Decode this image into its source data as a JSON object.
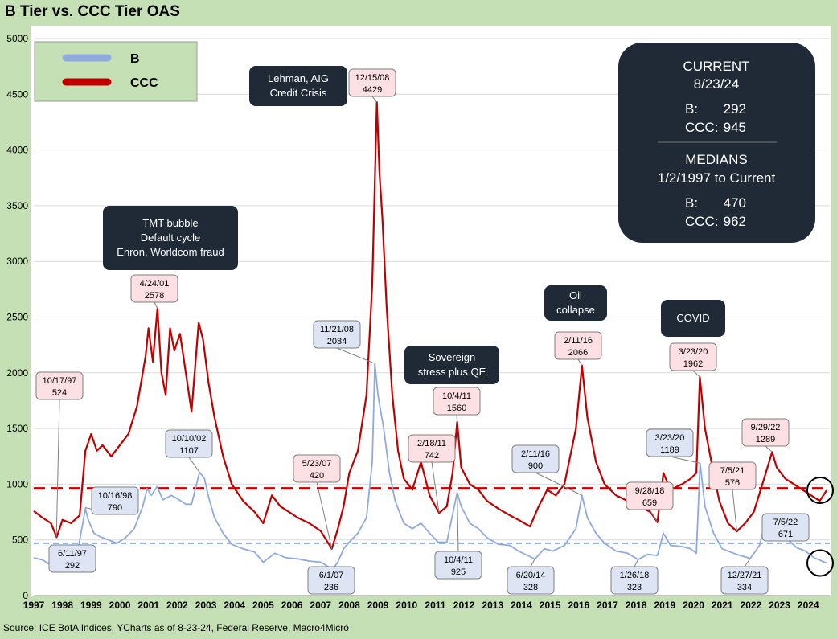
{
  "title": "B Tier vs. CCC Tier OAS",
  "source": "Source: ICE BofA Indices, YCharts as of 8-23-24, Federal Reserve, Macro4Micro",
  "chart_data": {
    "type": "line",
    "title": "B Tier vs. CCC Tier OAS",
    "xlabel": "",
    "ylabel": "",
    "xlim": [
      1997.0,
      2024.75
    ],
    "ylim": [
      0,
      5000
    ],
    "x_ticks": [
      "1997",
      "1998",
      "1999",
      "2000",
      "2001",
      "2002",
      "2003",
      "2004",
      "2005",
      "2006",
      "2007",
      "2008",
      "2009",
      "2010",
      "2011",
      "2012",
      "2013",
      "2014",
      "2015",
      "2016",
      "2017",
      "2018",
      "2019",
      "2020",
      "2021",
      "2022",
      "2023",
      "2024"
    ],
    "y_ticks": [
      0,
      500,
      1000,
      1500,
      2000,
      2500,
      3000,
      3500,
      4000,
      4500,
      5000
    ],
    "grid": "horizontal",
    "legend": "top-left",
    "series": [
      {
        "name": "B",
        "color": "#8faadc",
        "median": 470,
        "points": [
          [
            1997.0,
            340
          ],
          [
            1997.3,
            320
          ],
          [
            1997.5,
            292
          ],
          [
            1997.8,
            310
          ],
          [
            1998.0,
            320
          ],
          [
            1998.3,
            310
          ],
          [
            1998.5,
            350
          ],
          [
            1998.8,
            780
          ],
          [
            1998.9,
            680
          ],
          [
            1999.1,
            560
          ],
          [
            1999.3,
            530
          ],
          [
            1999.6,
            500
          ],
          [
            1999.9,
            470
          ],
          [
            2000.2,
            520
          ],
          [
            2000.5,
            600
          ],
          [
            2000.8,
            800
          ],
          [
            2000.95,
            960
          ],
          [
            2001.1,
            900
          ],
          [
            2001.3,
            980
          ],
          [
            2001.5,
            860
          ],
          [
            2001.8,
            900
          ],
          [
            2002.0,
            870
          ],
          [
            2002.3,
            820
          ],
          [
            2002.5,
            820
          ],
          [
            2002.78,
            1107
          ],
          [
            2002.95,
            1050
          ],
          [
            2003.1,
            880
          ],
          [
            2003.3,
            700
          ],
          [
            2003.6,
            560
          ],
          [
            2003.9,
            460
          ],
          [
            2004.3,
            420
          ],
          [
            2004.7,
            390
          ],
          [
            2005.0,
            300
          ],
          [
            2005.4,
            380
          ],
          [
            2005.8,
            340
          ],
          [
            2006.2,
            330
          ],
          [
            2006.6,
            310
          ],
          [
            2007.0,
            300
          ],
          [
            2007.42,
            236
          ],
          [
            2007.6,
            300
          ],
          [
            2007.8,
            420
          ],
          [
            2008.0,
            480
          ],
          [
            2008.3,
            560
          ],
          [
            2008.6,
            700
          ],
          [
            2008.8,
            1200
          ],
          [
            2008.89,
            2084
          ],
          [
            2009.0,
            1800
          ],
          [
            2009.2,
            1500
          ],
          [
            2009.4,
            1100
          ],
          [
            2009.6,
            850
          ],
          [
            2009.9,
            650
          ],
          [
            2010.2,
            600
          ],
          [
            2010.5,
            650
          ],
          [
            2010.8,
            560
          ],
          [
            2011.1,
            480
          ],
          [
            2011.4,
            480
          ],
          [
            2011.76,
            925
          ],
          [
            2011.9,
            800
          ],
          [
            2012.2,
            650
          ],
          [
            2012.5,
            600
          ],
          [
            2012.8,
            520
          ],
          [
            2013.2,
            460
          ],
          [
            2013.6,
            450
          ],
          [
            2013.9,
            400
          ],
          [
            2014.3,
            350
          ],
          [
            2014.47,
            328
          ],
          [
            2014.8,
            420
          ],
          [
            2015.1,
            400
          ],
          [
            2015.5,
            450
          ],
          [
            2015.9,
            600
          ],
          [
            2016.11,
            900
          ],
          [
            2016.3,
            700
          ],
          [
            2016.6,
            560
          ],
          [
            2016.9,
            470
          ],
          [
            2017.3,
            400
          ],
          [
            2017.7,
            380
          ],
          [
            2018.07,
            323
          ],
          [
            2018.4,
            370
          ],
          [
            2018.74,
            360
          ],
          [
            2018.95,
            560
          ],
          [
            2019.2,
            450
          ],
          [
            2019.6,
            440
          ],
          [
            2019.9,
            420
          ],
          [
            2020.1,
            380
          ],
          [
            2020.23,
            1189
          ],
          [
            2020.4,
            800
          ],
          [
            2020.7,
            560
          ],
          [
            2021.0,
            420
          ],
          [
            2021.5,
            370
          ],
          [
            2021.98,
            334
          ],
          [
            2022.3,
            450
          ],
          [
            2022.51,
            671
          ],
          [
            2022.7,
            560
          ],
          [
            2022.9,
            520
          ],
          [
            2023.3,
            500
          ],
          [
            2023.6,
            430
          ],
          [
            2023.9,
            400
          ],
          [
            2024.2,
            340
          ],
          [
            2024.64,
            292
          ]
        ]
      },
      {
        "name": "CCC",
        "color": "#c00000",
        "median": 962,
        "points": [
          [
            1997.0,
            760
          ],
          [
            1997.3,
            700
          ],
          [
            1997.6,
            650
          ],
          [
            1997.8,
            524
          ],
          [
            1998.0,
            680
          ],
          [
            1998.3,
            650
          ],
          [
            1998.6,
            720
          ],
          [
            1998.8,
            1300
          ],
          [
            1999.0,
            1450
          ],
          [
            1999.2,
            1300
          ],
          [
            1999.4,
            1350
          ],
          [
            1999.7,
            1250
          ],
          [
            2000.0,
            1350
          ],
          [
            2000.3,
            1450
          ],
          [
            2000.6,
            1700
          ],
          [
            2000.9,
            2150
          ],
          [
            2001.0,
            2400
          ],
          [
            2001.15,
            2100
          ],
          [
            2001.31,
            2578
          ],
          [
            2001.45,
            2000
          ],
          [
            2001.6,
            1800
          ],
          [
            2001.75,
            2400
          ],
          [
            2001.9,
            2200
          ],
          [
            2002.1,
            2350
          ],
          [
            2002.3,
            2000
          ],
          [
            2002.5,
            1650
          ],
          [
            2002.75,
            2450
          ],
          [
            2002.9,
            2300
          ],
          [
            2003.1,
            1900
          ],
          [
            2003.3,
            1600
          ],
          [
            2003.6,
            1250
          ],
          [
            2003.9,
            1000
          ],
          [
            2004.3,
            850
          ],
          [
            2004.7,
            750
          ],
          [
            2005.0,
            650
          ],
          [
            2005.3,
            900
          ],
          [
            2005.6,
            800
          ],
          [
            2005.9,
            750
          ],
          [
            2006.2,
            700
          ],
          [
            2006.6,
            650
          ],
          [
            2007.0,
            580
          ],
          [
            2007.39,
            420
          ],
          [
            2007.6,
            600
          ],
          [
            2007.8,
            800
          ],
          [
            2008.0,
            1100
          ],
          [
            2008.3,
            1300
          ],
          [
            2008.6,
            1800
          ],
          [
            2008.8,
            2800
          ],
          [
            2008.96,
            4429
          ],
          [
            2009.05,
            3800
          ],
          [
            2009.15,
            3400
          ],
          [
            2009.3,
            2600
          ],
          [
            2009.5,
            1800
          ],
          [
            2009.7,
            1300
          ],
          [
            2009.9,
            1050
          ],
          [
            2010.2,
            950
          ],
          [
            2010.5,
            1200
          ],
          [
            2010.8,
            900
          ],
          [
            2011.13,
            742
          ],
          [
            2011.4,
            800
          ],
          [
            2011.6,
            1100
          ],
          [
            2011.76,
            1560
          ],
          [
            2011.9,
            1150
          ],
          [
            2012.2,
            1000
          ],
          [
            2012.5,
            950
          ],
          [
            2012.8,
            850
          ],
          [
            2013.2,
            780
          ],
          [
            2013.6,
            720
          ],
          [
            2013.9,
            680
          ],
          [
            2014.3,
            620
          ],
          [
            2014.6,
            800
          ],
          [
            2014.9,
            950
          ],
          [
            2015.2,
            900
          ],
          [
            2015.5,
            1000
          ],
          [
            2015.9,
            1500
          ],
          [
            2016.11,
            2066
          ],
          [
            2016.3,
            1600
          ],
          [
            2016.6,
            1200
          ],
          [
            2016.9,
            1000
          ],
          [
            2017.3,
            900
          ],
          [
            2017.7,
            850
          ],
          [
            2018.1,
            800
          ],
          [
            2018.5,
            750
          ],
          [
            2018.74,
            659
          ],
          [
            2018.95,
            1100
          ],
          [
            2019.2,
            950
          ],
          [
            2019.6,
            1000
          ],
          [
            2019.9,
            1050
          ],
          [
            2020.1,
            1100
          ],
          [
            2020.22,
            1962
          ],
          [
            2020.4,
            1500
          ],
          [
            2020.7,
            1100
          ],
          [
            2020.9,
            850
          ],
          [
            2021.2,
            650
          ],
          [
            2021.51,
            576
          ],
          [
            2021.8,
            650
          ],
          [
            2022.1,
            750
          ],
          [
            2022.4,
            1000
          ],
          [
            2022.74,
            1289
          ],
          [
            2022.9,
            1150
          ],
          [
            2023.2,
            1050
          ],
          [
            2023.5,
            1000
          ],
          [
            2023.8,
            950
          ],
          [
            2024.1,
            900
          ],
          [
            2024.4,
            850
          ],
          [
            2024.64,
            945
          ]
        ]
      }
    ],
    "callouts": [
      {
        "series": "CCC",
        "date": "10/17/97",
        "value": "524",
        "x": 1997.79,
        "y": 524
      },
      {
        "series": "B",
        "date": "6/11/97",
        "value": "292",
        "x": 1997.44,
        "y": 292
      },
      {
        "series": "B",
        "date": "10/16/98",
        "value": "790",
        "x": 1998.79,
        "y": 790
      },
      {
        "series": "CCC",
        "date": "4/24/01",
        "value": "2578",
        "x": 2001.31,
        "y": 2578
      },
      {
        "series": "B",
        "date": "10/10/02",
        "value": "1107",
        "x": 2002.78,
        "y": 1107
      },
      {
        "series": "CCC",
        "date": "5/23/07",
        "value": "420",
        "x": 2007.39,
        "y": 420
      },
      {
        "series": "B",
        "date": "6/1/07",
        "value": "236",
        "x": 2007.42,
        "y": 236
      },
      {
        "series": "CCC",
        "date": "12/15/08",
        "value": "4429",
        "x": 2008.96,
        "y": 4429
      },
      {
        "series": "B",
        "date": "11/21/08",
        "value": "2084",
        "x": 2008.89,
        "y": 2084
      },
      {
        "series": "CCC",
        "date": "2/18/11",
        "value": "742",
        "x": 2011.13,
        "y": 742
      },
      {
        "series": "CCC",
        "date": "10/4/11",
        "value": "1560",
        "x": 2011.76,
        "y": 1560
      },
      {
        "series": "B",
        "date": "10/4/11",
        "value": "925",
        "x": 2011.76,
        "y": 925
      },
      {
        "series": "B",
        "date": "6/20/14",
        "value": "328",
        "x": 2014.47,
        "y": 328
      },
      {
        "series": "B",
        "date": "2/11/16",
        "value": "900",
        "x": 2016.11,
        "y": 900
      },
      {
        "series": "CCC",
        "date": "2/11/16",
        "value": "2066",
        "x": 2016.11,
        "y": 2066
      },
      {
        "series": "B",
        "date": "1/26/18",
        "value": "323",
        "x": 2018.07,
        "y": 323
      },
      {
        "series": "CCC",
        "date": "9/28/18",
        "value": "659",
        "x": 2018.74,
        "y": 659
      },
      {
        "series": "B",
        "date": "3/23/20",
        "value": "1189",
        "x": 2020.23,
        "y": 1189
      },
      {
        "series": "CCC",
        "date": "3/23/20",
        "value": "1962",
        "x": 2020.22,
        "y": 1962
      },
      {
        "series": "CCC",
        "date": "7/5/21",
        "value": "576",
        "x": 2021.51,
        "y": 576
      },
      {
        "series": "B",
        "date": "12/27/21",
        "value": "334",
        "x": 2021.98,
        "y": 334
      },
      {
        "series": "CCC",
        "date": "9/29/22",
        "value": "1289",
        "x": 2022.74,
        "y": 1289
      },
      {
        "series": "B",
        "date": "7/5/22",
        "value": "671",
        "x": 2022.51,
        "y": 671
      }
    ],
    "annotations": [
      {
        "lines": [
          "Lehman, AIG",
          "Credit Crisis"
        ]
      },
      {
        "lines": [
          "TMT bubble",
          "Default cycle",
          "Enron, Worldcom fraud"
        ]
      },
      {
        "lines": [
          "Sovereign",
          "stress plus QE"
        ]
      },
      {
        "lines": [
          "Oil",
          "collapse"
        ]
      },
      {
        "lines": [
          "COVID"
        ]
      }
    ],
    "info_box": {
      "current_heading": "CURRENT",
      "current_date": "8/23/24",
      "current_b_label": "B:",
      "current_b_value": "292",
      "current_ccc_label": "CCC:",
      "current_ccc_value": "945",
      "medians_heading": "MEDIANS",
      "medians_period": "1/2/1997 to Current",
      "median_b_label": "B:",
      "median_b_value": "470",
      "median_ccc_label": "CCC:",
      "median_ccc_value": "962"
    }
  }
}
